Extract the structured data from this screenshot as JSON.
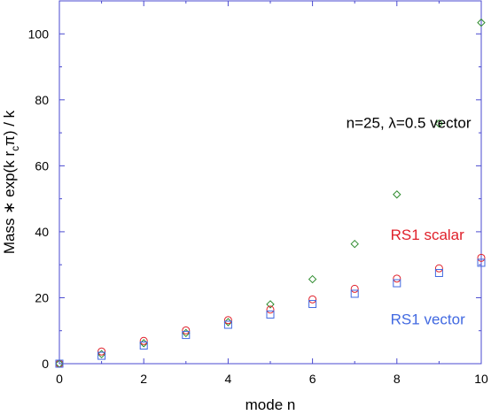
{
  "chart_data": {
    "type": "scatter",
    "xlabel": "mode n",
    "ylabel": "Mass * exp(k r_c π) / k",
    "ylabel_parts": {
      "pre": "Mass ",
      "star": "∗",
      "mid": " exp(k r",
      "sub": "c",
      "post": "π) / k"
    },
    "xlim": [
      0,
      10
    ],
    "ylim": [
      0,
      110
    ],
    "x_ticks": [
      0,
      2,
      4,
      6,
      8,
      10
    ],
    "y_ticks": [
      0,
      20,
      40,
      60,
      80,
      100
    ],
    "grid": false,
    "series": [
      {
        "name": "n=25, λ=0.5 vector",
        "marker": "diamond",
        "color": "#2e8b2e",
        "x": [
          0,
          1,
          2,
          3,
          4,
          5,
          6,
          7,
          8,
          9,
          10
        ],
        "y": [
          0,
          2.9,
          6.2,
          9.3,
          12.6,
          18.0,
          25.6,
          36.3,
          51.3,
          72.8,
          103.4
        ]
      },
      {
        "name": "RS1 scalar",
        "marker": "circle",
        "color": "#e0202a",
        "x": [
          0,
          1,
          2,
          3,
          4,
          5,
          6,
          7,
          8,
          9,
          10
        ],
        "y": [
          0,
          3.7,
          6.9,
          10.1,
          13.2,
          16.4,
          19.5,
          22.7,
          25.8,
          28.9,
          32.1
        ]
      },
      {
        "name": "RS1 vector",
        "marker": "square",
        "color": "#4169e1",
        "x": [
          0,
          1,
          2,
          3,
          4,
          5,
          6,
          7,
          8,
          9,
          10
        ],
        "y": [
          0,
          2.4,
          5.5,
          8.7,
          11.8,
          14.9,
          18.1,
          21.2,
          24.4,
          27.5,
          30.6
        ]
      }
    ],
    "annotations": [
      {
        "text": "n=25, λ=0.5 vector",
        "color": "#000000",
        "x": 6.8,
        "y": 71.5
      },
      {
        "text": "RS1 scalar",
        "color": "#e0202a",
        "x": 7.85,
        "y": 37.5
      },
      {
        "text": "RS1 vector",
        "color": "#4169e1",
        "x": 7.85,
        "y": 12.0
      }
    ]
  }
}
